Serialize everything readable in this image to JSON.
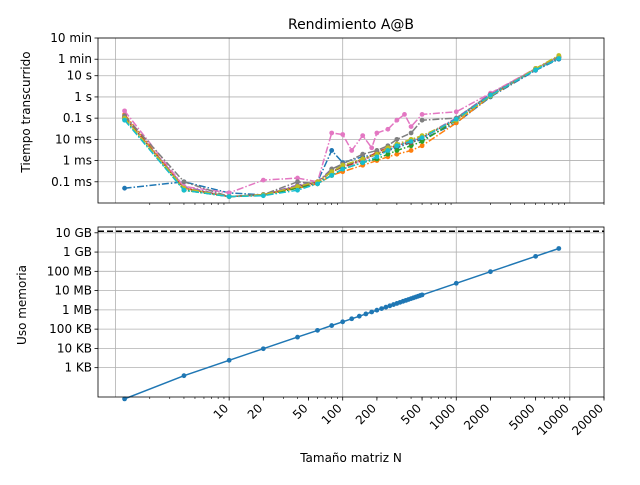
{
  "chart_data": [
    {
      "type": "line",
      "title": "Rendimiento A@B",
      "xlabel": "",
      "ylabel": "Tiempo transcurrido",
      "xscale": "log",
      "yscale": "log",
      "xlim": [
        0.7,
        20000
      ],
      "ylim": [
        1e-05,
        600
      ],
      "grid": true,
      "yticks": [
        {
          "value": 600,
          "label": "10 min"
        },
        {
          "value": 60,
          "label": "1 min"
        },
        {
          "value": 10,
          "label": "10 s"
        },
        {
          "value": 1,
          "label": "1 s"
        },
        {
          "value": 0.1,
          "label": "0.1 s"
        },
        {
          "value": 0.01,
          "label": "10 ms"
        },
        {
          "value": 0.001,
          "label": "1 ms"
        },
        {
          "value": 0.0001,
          "label": "0.1 ms"
        }
      ],
      "series": [
        {
          "color": "#1f77b4",
          "x": [
            1.2,
            4,
            10,
            20,
            40,
            60,
            80,
            100,
            150,
            200,
            250,
            300,
            400,
            500,
            1000,
            2000,
            5000,
            8000
          ],
          "y": [
            5e-05,
            0.0001,
            3e-05,
            2.4e-05,
            6e-05,
            0.0001,
            0.003,
            0.0008,
            0.0015,
            0.002,
            0.003,
            0.004,
            0.007,
            0.01,
            0.06,
            1,
            18,
            60
          ]
        },
        {
          "color": "#ff7f0e",
          "x": [
            1.2,
            4,
            10,
            20,
            40,
            60,
            80,
            100,
            150,
            200,
            250,
            300,
            400,
            500,
            1000,
            2000,
            5000,
            8000
          ],
          "y": [
            0.15,
            5e-05,
            2e-05,
            2.5e-05,
            5e-05,
            8e-05,
            0.0002,
            0.0003,
            0.0006,
            0.001,
            0.0015,
            0.002,
            0.003,
            0.005,
            0.06,
            1.1,
            20,
            80
          ]
        },
        {
          "color": "#2ca02c",
          "x": [
            1.2,
            4,
            10,
            20,
            40,
            60,
            80,
            100,
            150,
            200,
            250,
            300,
            400,
            500,
            1000,
            2000,
            5000,
            8000
          ],
          "y": [
            0.09,
            4e-05,
            2e-05,
            2.3e-05,
            5e-05,
            9e-05,
            0.0002,
            0.0004,
            0.0008,
            0.0012,
            0.002,
            0.003,
            0.005,
            0.008,
            0.08,
            1.2,
            20,
            70
          ]
        },
        {
          "color": "#d62728",
          "x": [
            1.2,
            4,
            10,
            20,
            40,
            60,
            80,
            100,
            150,
            200,
            250,
            300,
            400,
            500,
            1000,
            2000,
            5000,
            8000
          ],
          "y": [
            0.12,
            5e-05,
            2e-05,
            2.4e-05,
            6e-05,
            0.0001,
            0.0003,
            0.0005,
            0.001,
            0.0025,
            0.004,
            0.005,
            0.008,
            0.012,
            0.09,
            1.3,
            21,
            75
          ]
        },
        {
          "color": "#9467bd",
          "x": [
            1.2,
            4,
            10,
            20,
            40,
            60,
            80,
            100,
            150,
            200,
            250,
            300,
            400,
            500,
            1000,
            2000,
            5000,
            8000
          ],
          "y": [
            0.1,
            6e-05,
            2e-05,
            2.5e-05,
            7e-05,
            0.0001,
            0.0004,
            0.0006,
            0.001,
            0.002,
            0.004,
            0.006,
            0.009,
            0.013,
            0.1,
            1.4,
            22,
            78
          ]
        },
        {
          "color": "#8c564b",
          "x": [
            1.2,
            4,
            10,
            20,
            40,
            60,
            80,
            100,
            150,
            200,
            250,
            300,
            400,
            500,
            1000,
            2000,
            5000,
            8000
          ],
          "y": [
            0.11,
            5e-05,
            2e-05,
            2.4e-05,
            6e-05,
            9e-05,
            0.0003,
            0.0005,
            0.0012,
            0.002,
            0.003,
            0.005,
            0.007,
            0.012,
            0.085,
            1.2,
            20,
            72
          ]
        },
        {
          "color": "#e377c2",
          "x": [
            1.2,
            4,
            10,
            20,
            40,
            60,
            80,
            100,
            120,
            150,
            180,
            200,
            250,
            300,
            350,
            400,
            500,
            1000,
            2000,
            5000,
            8000
          ],
          "y": [
            0.22,
            6e-05,
            3e-05,
            0.00012,
            0.00015,
            0.0001,
            0.02,
            0.017,
            0.003,
            0.015,
            0.004,
            0.02,
            0.03,
            0.08,
            0.15,
            0.04,
            0.15,
            0.2,
            1.5,
            22,
            85
          ]
        },
        {
          "color": "#7f7f7f",
          "x": [
            1.2,
            4,
            10,
            20,
            40,
            60,
            80,
            100,
            150,
            200,
            250,
            300,
            400,
            500,
            1000,
            2000,
            5000,
            8000
          ],
          "y": [
            0.13,
            0.0001,
            2e-05,
            2.5e-05,
            0.0001,
            8e-05,
            0.0004,
            0.0007,
            0.002,
            0.003,
            0.005,
            0.01,
            0.02,
            0.08,
            0.1,
            1.3,
            20,
            80
          ]
        },
        {
          "color": "#bcbd22",
          "x": [
            1.2,
            4,
            10,
            20,
            40,
            60,
            80,
            100,
            150,
            200,
            250,
            300,
            400,
            500,
            1000,
            2000,
            5000,
            8000
          ],
          "y": [
            0.1,
            5e-05,
            2e-05,
            2.4e-05,
            6e-05,
            0.0001,
            0.0003,
            0.0006,
            0.0012,
            0.002,
            0.004,
            0.006,
            0.01,
            0.015,
            0.08,
            1.1,
            22,
            90
          ]
        },
        {
          "color": "#17becf",
          "x": [
            1.2,
            4,
            10,
            20,
            40,
            60,
            80,
            100,
            150,
            200,
            250,
            300,
            400,
            500,
            1000,
            2000,
            5000,
            8000
          ],
          "y": [
            0.08,
            4e-05,
            2e-05,
            2.2e-05,
            4e-05,
            8e-05,
            0.0002,
            0.0004,
            0.0008,
            0.0015,
            0.003,
            0.005,
            0.008,
            0.012,
            0.09,
            1.2,
            19,
            65
          ]
        }
      ]
    },
    {
      "type": "line",
      "title": "",
      "xlabel": "Tamaño matriz N",
      "ylabel": "Uso memoria",
      "xscale": "log",
      "yscale": "log",
      "xlim": [
        0.7,
        20000
      ],
      "ylim": [
        30,
        20000000000
      ],
      "grid": true,
      "xticks": [
        10,
        20,
        50,
        100,
        200,
        500,
        1000,
        2000,
        5000,
        10000,
        20000
      ],
      "yticks": [
        {
          "value": 10000000000,
          "label": "10 GB"
        },
        {
          "value": 1000000000,
          "label": "1 GB"
        },
        {
          "value": 100000000,
          "label": "100 MB"
        },
        {
          "value": 10000000,
          "label": "10 MB"
        },
        {
          "value": 1000000,
          "label": "1 MB"
        },
        {
          "value": 100000,
          "label": "100 KB"
        },
        {
          "value": 10000,
          "label": "10 KB"
        },
        {
          "value": 1000,
          "label": "1 KB"
        }
      ],
      "hline": {
        "value": 12000000000,
        "color": "#000000",
        "style": "dashed"
      },
      "series": [
        {
          "color": "#1f77b4",
          "x": [
            1.2,
            4,
            10,
            20,
            40,
            60,
            80,
            100,
            120,
            140,
            160,
            180,
            200,
            220,
            240,
            260,
            280,
            300,
            320,
            340,
            360,
            380,
            400,
            420,
            440,
            460,
            480,
            500,
            1000,
            2000,
            5000,
            8000
          ],
          "y": [
            24,
            384,
            2400,
            9600,
            38400,
            86400,
            153600,
            240000,
            345600,
            470400,
            614400,
            777600,
            960000,
            1161600,
            1382400,
            1622400,
            1881600,
            2160000,
            2457600,
            2774400,
            3110400,
            3465600,
            3840000,
            4233600,
            4646400,
            5078400,
            5529600,
            6000000,
            24000000,
            96000000,
            600000000,
            1536000000
          ]
        }
      ]
    }
  ]
}
